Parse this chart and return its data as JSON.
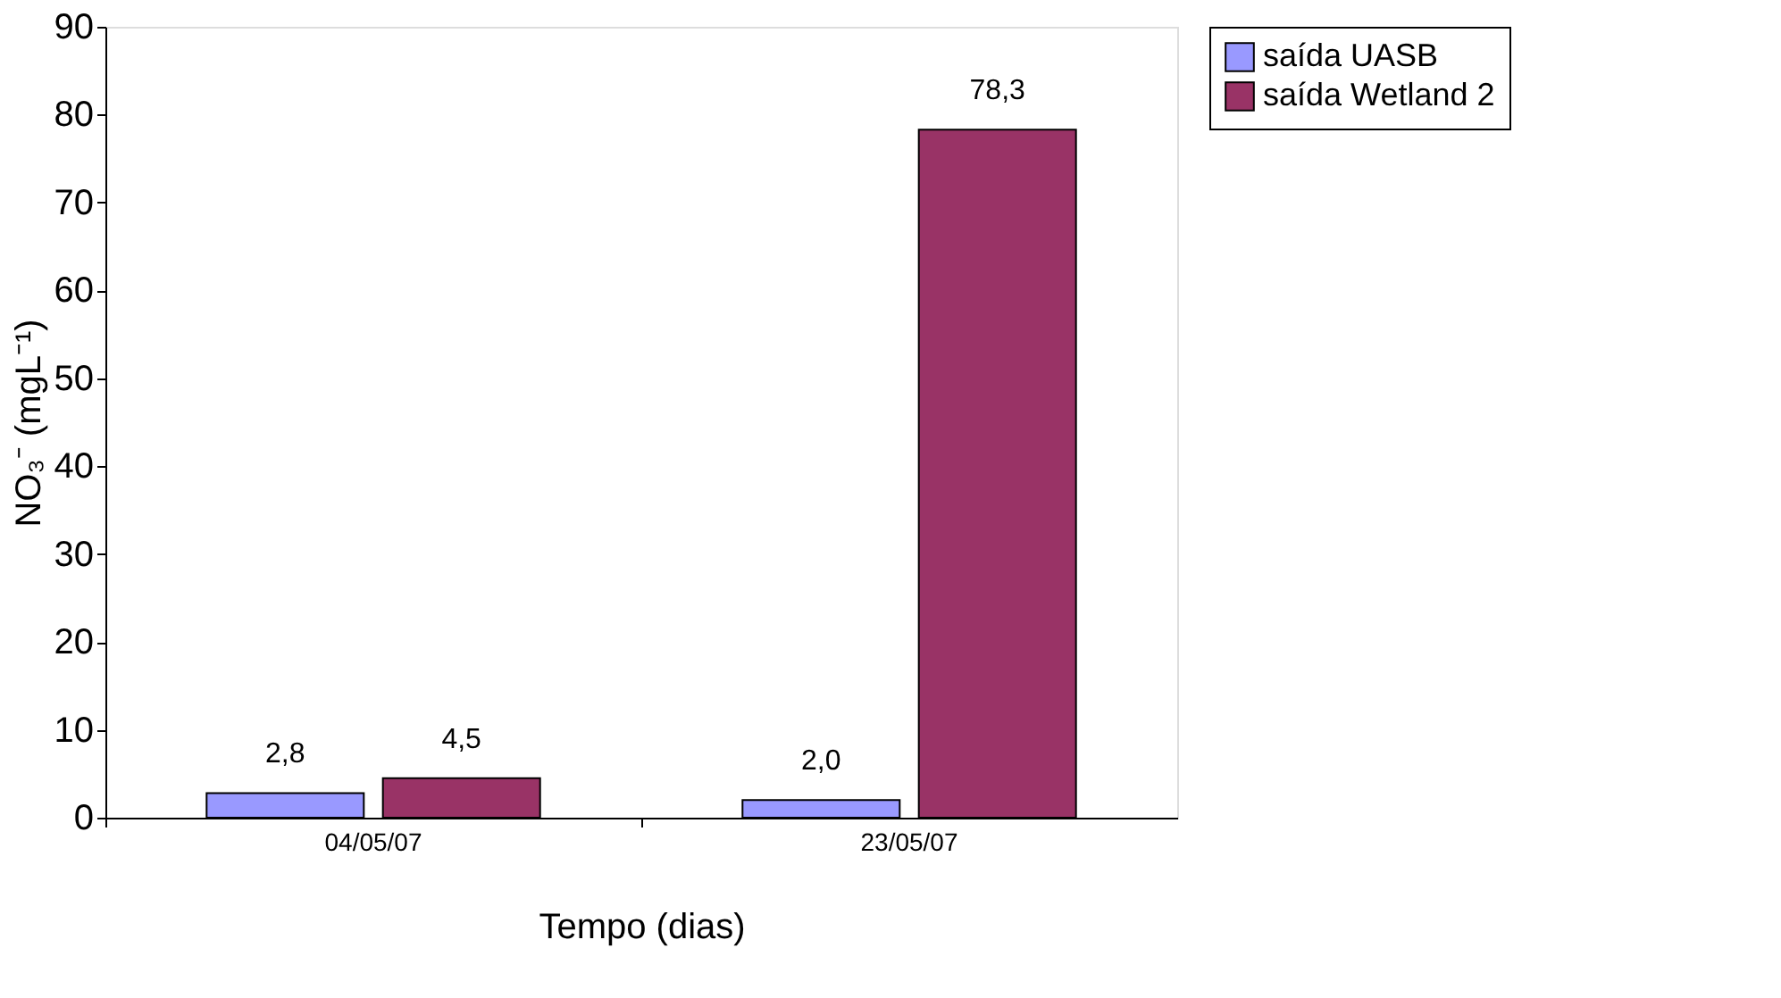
{
  "chart_data": {
    "type": "bar",
    "xlabel": "Tempo (dias)",
    "ylabel": "NO₃⁻ (mgL⁻¹)",
    "categories": [
      "04/05/07",
      "23/05/07"
    ],
    "series": [
      {
        "name": "saída UASB",
        "color": "#9999ff",
        "values": [
          2.8,
          2.0
        ],
        "value_labels": [
          "2,8",
          "2,0"
        ]
      },
      {
        "name": "saída Wetland 2",
        "color": "#993366",
        "values": [
          4.5,
          78.3
        ],
        "value_labels": [
          "4,5",
          "78,3"
        ]
      }
    ],
    "ylim": [
      0,
      90
    ],
    "yticks": [
      0,
      10,
      20,
      30,
      40,
      50,
      60,
      70,
      80,
      90
    ],
    "grid": false,
    "legend": "right"
  }
}
